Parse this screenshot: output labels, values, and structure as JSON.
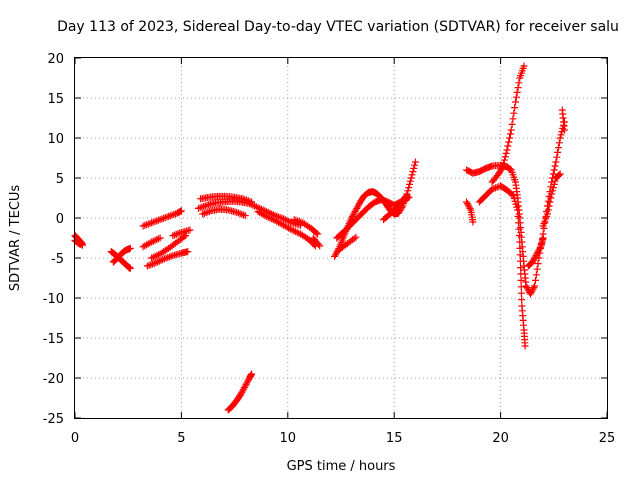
{
  "chart_data": {
    "type": "scatter",
    "title": "Day 113 of 2023, Sidereal Day-to-day VTEC variation (SDTVAR) for receiver salu",
    "xlabel": "GPS time / hours",
    "ylabel": "SDTVAR / TECUs",
    "xlim": [
      0,
      25
    ],
    "ylim": [
      -25,
      20
    ],
    "xticks": [
      0,
      5,
      10,
      15,
      20,
      25
    ],
    "yticks": [
      -25,
      -20,
      -15,
      -10,
      -5,
      0,
      5,
      10,
      15,
      20
    ],
    "grid": true,
    "marker": "+",
    "color": "#ff0000",
    "series": [
      {
        "name": "SDTVAR",
        "segments": [
          [
            [
              0.0,
              -2.2
            ],
            [
              0.1,
              -2.5
            ],
            [
              0.2,
              -2.8
            ],
            [
              0.3,
              -3.1
            ],
            [
              0.35,
              -3.4
            ]
          ],
          [
            [
              0.0,
              -2.8
            ],
            [
              0.1,
              -3.0
            ],
            [
              0.25,
              -3.3
            ]
          ],
          [
            [
              1.7,
              -4.2
            ],
            [
              1.9,
              -4.6
            ],
            [
              2.1,
              -5.1
            ],
            [
              2.3,
              -5.6
            ],
            [
              2.5,
              -6.1
            ],
            [
              2.6,
              -6.3
            ]
          ],
          [
            [
              1.8,
              -5.5
            ],
            [
              2.0,
              -5.0
            ],
            [
              2.2,
              -4.4
            ],
            [
              2.4,
              -4.0
            ],
            [
              2.6,
              -3.8
            ]
          ],
          [
            [
              3.2,
              -1.0
            ],
            [
              3.6,
              -0.6
            ],
            [
              4.0,
              -0.2
            ],
            [
              4.4,
              0.2
            ],
            [
              4.8,
              0.6
            ],
            [
              5.0,
              0.9
            ]
          ],
          [
            [
              3.4,
              -6.0
            ],
            [
              3.8,
              -5.6
            ],
            [
              4.2,
              -5.1
            ],
            [
              4.6,
              -4.7
            ],
            [
              5.0,
              -4.4
            ],
            [
              5.3,
              -4.2
            ]
          ],
          [
            [
              3.6,
              -5.0
            ],
            [
              4.0,
              -4.5
            ],
            [
              4.4,
              -3.8
            ],
            [
              4.8,
              -3.0
            ],
            [
              5.2,
              -2.2
            ]
          ],
          [
            [
              3.2,
              -3.6
            ],
            [
              3.6,
              -3.0
            ],
            [
              4.0,
              -2.5
            ]
          ],
          [
            [
              4.6,
              -2.2
            ],
            [
              5.0,
              -1.8
            ],
            [
              5.4,
              -1.5
            ]
          ],
          [
            [
              5.8,
              1.2
            ],
            [
              6.2,
              1.6
            ],
            [
              6.6,
              1.9
            ],
            [
              7.0,
              2.0
            ],
            [
              7.4,
              2.1
            ],
            [
              7.8,
              2.0
            ],
            [
              8.2,
              1.8
            ],
            [
              8.6,
              1.3
            ],
            [
              9.0,
              0.8
            ],
            [
              9.4,
              0.3
            ],
            [
              9.8,
              -0.1
            ],
            [
              10.2,
              -0.6
            ],
            [
              10.6,
              -0.9
            ]
          ],
          [
            [
              5.9,
              2.4
            ],
            [
              6.3,
              2.6
            ],
            [
              6.7,
              2.7
            ],
            [
              7.1,
              2.7
            ],
            [
              7.5,
              2.6
            ],
            [
              7.9,
              2.4
            ],
            [
              8.3,
              2.0
            ]
          ],
          [
            [
              6.0,
              0.5
            ],
            [
              6.4,
              0.9
            ],
            [
              6.8,
              1.1
            ],
            [
              7.2,
              1.0
            ],
            [
              7.6,
              0.7
            ],
            [
              8.0,
              0.3
            ]
          ],
          [
            [
              7.2,
              -24.0
            ],
            [
              7.4,
              -23.5
            ],
            [
              7.6,
              -22.8
            ],
            [
              7.8,
              -22.0
            ],
            [
              8.0,
              -21.0
            ],
            [
              8.2,
              -20.0
            ],
            [
              8.3,
              -19.5
            ]
          ],
          [
            [
              8.6,
              0.8
            ],
            [
              9.0,
              0.2
            ],
            [
              9.4,
              -0.3
            ],
            [
              9.8,
              -0.9
            ],
            [
              10.2,
              -1.5
            ],
            [
              10.6,
              -2.0
            ],
            [
              11.0,
              -2.7
            ],
            [
              11.3,
              -3.5
            ]
          ],
          [
            [
              10.3,
              -0.2
            ],
            [
              10.7,
              -0.6
            ],
            [
              11.1,
              -1.3
            ],
            [
              11.4,
              -2.0
            ]
          ],
          [
            [
              11.2,
              -2.5
            ],
            [
              11.5,
              -3.5
            ]
          ],
          [
            [
              12.2,
              -4.8
            ],
            [
              12.4,
              -3.8
            ],
            [
              12.6,
              -2.5
            ],
            [
              12.8,
              -1.2
            ],
            [
              13.0,
              0.0
            ],
            [
              13.2,
              1.0
            ],
            [
              13.4,
              2.0
            ],
            [
              13.6,
              2.8
            ],
            [
              13.8,
              3.2
            ],
            [
              14.0,
              3.3
            ],
            [
              14.2,
              3.0
            ],
            [
              14.4,
              2.5
            ],
            [
              14.6,
              1.8
            ],
            [
              14.8,
              1.0
            ],
            [
              15.0,
              0.5
            ],
            [
              15.2,
              0.6
            ],
            [
              15.4,
              1.5
            ],
            [
              15.6,
              3.0
            ],
            [
              15.8,
              5.0
            ],
            [
              16.0,
              7.0
            ]
          ],
          [
            [
              12.3,
              -2.5
            ],
            [
              12.6,
              -1.8
            ],
            [
              12.9,
              -1.0
            ],
            [
              13.2,
              -0.2
            ],
            [
              13.5,
              0.6
            ],
            [
              13.8,
              1.4
            ],
            [
              14.1,
              2.0
            ],
            [
              14.4,
              2.3
            ],
            [
              14.7,
              2.0
            ],
            [
              15.0,
              1.6
            ],
            [
              15.3,
              2.0
            ],
            [
              15.6,
              2.8
            ]
          ],
          [
            [
              12.4,
              -4.0
            ],
            [
              12.8,
              -3.2
            ],
            [
              13.2,
              -2.4
            ]
          ],
          [
            [
              14.5,
              -0.2
            ],
            [
              14.8,
              0.5
            ],
            [
              15.1,
              1.2
            ],
            [
              15.4,
              2.0
            ],
            [
              15.7,
              2.6
            ]
          ],
          [
            [
              18.4,
              6.0
            ],
            [
              18.7,
              5.6
            ],
            [
              19.0,
              5.8
            ],
            [
              19.3,
              6.2
            ],
            [
              19.6,
              6.5
            ],
            [
              20.0,
              6.6
            ],
            [
              20.3,
              6.4
            ],
            [
              20.5,
              6.0
            ],
            [
              20.7,
              4.5
            ],
            [
              20.8,
              2.5
            ],
            [
              20.9,
              0.0
            ],
            [
              21.0,
              -3.0
            ],
            [
              21.1,
              -6.0
            ],
            [
              21.2,
              -8.5
            ],
            [
              21.4,
              -9.5
            ],
            [
              21.6,
              -8.5
            ],
            [
              21.8,
              -5.0
            ],
            [
              22.0,
              -2.0
            ],
            [
              22.2,
              1.5
            ],
            [
              22.4,
              4.5
            ],
            [
              22.6,
              7.0
            ],
            [
              22.8,
              10.0
            ],
            [
              23.0,
              12.0
            ]
          ],
          [
            [
              19.0,
              2.0
            ],
            [
              19.3,
              2.8
            ],
            [
              19.6,
              3.6
            ],
            [
              20.0,
              4.0
            ],
            [
              20.3,
              3.5
            ],
            [
              20.6,
              2.8
            ],
            [
              20.8,
              1.0
            ],
            [
              20.9,
              -3.0
            ],
            [
              20.95,
              -7.0
            ],
            [
              21.0,
              -11.0
            ],
            [
              21.1,
              -14.0
            ],
            [
              21.15,
              -16.0
            ]
          ],
          [
            [
              19.6,
              4.5
            ],
            [
              19.9,
              5.5
            ],
            [
              20.1,
              6.4
            ],
            [
              20.3,
              8.5
            ],
            [
              20.5,
              11.0
            ],
            [
              20.7,
              14.5
            ],
            [
              20.9,
              17.5
            ],
            [
              21.1,
              19.0
            ]
          ],
          [
            [
              18.4,
              2.0
            ],
            [
              18.6,
              1.0
            ],
            [
              18.7,
              -0.5
            ]
          ],
          [
            [
              21.3,
              -6.0
            ],
            [
              21.5,
              -5.5
            ],
            [
              21.7,
              -4.5
            ],
            [
              21.9,
              -3.5
            ],
            [
              22.0,
              -2.5
            ]
          ],
          [
            [
              22.0,
              -1.0
            ],
            [
              22.2,
              0.5
            ],
            [
              22.4,
              3.0
            ],
            [
              22.6,
              5.0
            ],
            [
              22.8,
              5.5
            ]
          ],
          [
            [
              22.9,
              13.5
            ],
            [
              23.0,
              11.0
            ]
          ]
        ]
      }
    ]
  }
}
